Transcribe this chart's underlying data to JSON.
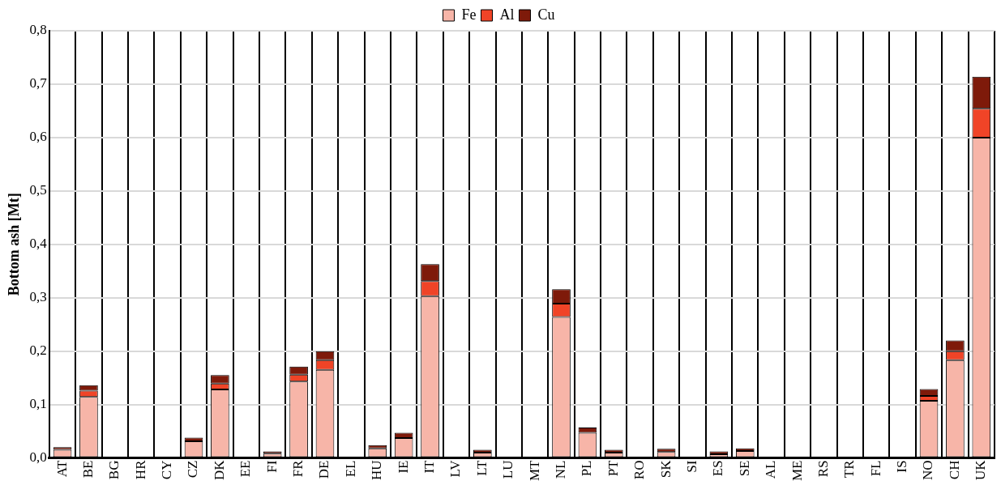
{
  "chart_data": {
    "type": "bar",
    "stacked": true,
    "ylabel": "Bottom ash [Mt]",
    "categories": [
      "AT",
      "BE",
      "BG",
      "HR",
      "CY",
      "CZ",
      "DK",
      "EE",
      "FI",
      "FR",
      "DE",
      "EL",
      "HU",
      "IE",
      "IT",
      "LV",
      "LT",
      "LU",
      "MT",
      "NL",
      "PL",
      "PT",
      "RO",
      "SK",
      "SI",
      "ES",
      "SE",
      "AL",
      "ME",
      "RS",
      "TR",
      "FL",
      "IS",
      "NO",
      "CH",
      "UK"
    ],
    "series": [
      {
        "name": "Fe",
        "color": "#f7b5a8",
        "values": [
          0.015,
          0.114,
          0,
          0,
          0,
          0.031,
          0.128,
          0,
          0.008,
          0.143,
          0.165,
          0,
          0.018,
          0.037,
          0.303,
          0,
          0.01,
          0,
          0,
          0.264,
          0.047,
          0.01,
          0,
          0.011,
          0,
          0.007,
          0.013,
          0,
          0,
          0,
          0,
          0,
          0,
          0.107,
          0.183,
          0.6
        ]
      },
      {
        "name": "Al",
        "color": "#f04427",
        "values": [
          null,
          0.012,
          0,
          0,
          0,
          null,
          0.011,
          null,
          null,
          0.013,
          0.018,
          0,
          null,
          null,
          0.028,
          0,
          null,
          null,
          0,
          0.025,
          null,
          null,
          0,
          null,
          0,
          null,
          null,
          0,
          0,
          0,
          0,
          0,
          0,
          0.009,
          0.017,
          0.054
        ]
      },
      {
        "name": "Cu",
        "color": "#7e1a0a",
        "values": [
          0.005,
          0.01,
          0,
          0,
          0,
          0.007,
          0.016,
          null,
          0.004,
          0.015,
          0.017,
          0,
          0.006,
          0.01,
          0.032,
          0,
          0.005,
          null,
          0,
          0.027,
          0.01,
          0.005,
          0,
          0.006,
          0,
          0.005,
          0.005,
          0,
          0,
          0,
          0,
          0,
          0,
          0.013,
          0.02,
          0.06
        ]
      }
    ],
    "ylim": [
      0,
      0.8
    ],
    "yticks": [
      {
        "value": 0,
        "label": "0,0"
      },
      {
        "value": 0.1,
        "label": "0,1"
      },
      {
        "value": 0.2,
        "label": "0,2"
      },
      {
        "value": 0.3,
        "label": "0,3"
      },
      {
        "value": 0.4,
        "label": "0,4"
      },
      {
        "value": 0.5,
        "label": "0,5"
      },
      {
        "value": 0.6,
        "label": "0,6"
      },
      {
        "value": 0.7,
        "label": "0,7"
      },
      {
        "value": 0.8,
        "label": "0,8"
      }
    ],
    "grid": true,
    "legend": "top"
  }
}
